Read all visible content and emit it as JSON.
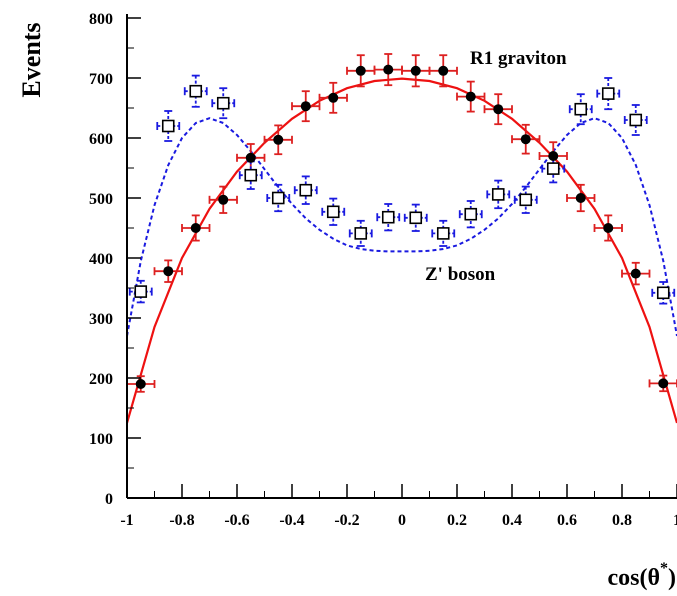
{
  "chart_data": {
    "type": "scatter",
    "title": "",
    "xlabel": "cos(θ*)",
    "ylabel": "Events",
    "xlim": [
      -1,
      1
    ],
    "ylim": [
      0,
      800
    ],
    "x_ticks": [
      -1,
      -0.8,
      -0.6,
      -0.4,
      -0.2,
      0,
      0.2,
      0.4,
      0.6,
      0.8,
      1
    ],
    "x_tick_labels": [
      "-1",
      "-0.8",
      "-0.6",
      "-0.4",
      "-0.2",
      "0",
      "0.2",
      "0.4",
      "0.6",
      "0.8",
      "1"
    ],
    "y_ticks": [
      0,
      100,
      200,
      300,
      400,
      500,
      600,
      700,
      800
    ],
    "y_tick_labels": [
      "0",
      "100",
      "200",
      "300",
      "400",
      "500",
      "600",
      "700",
      "800"
    ],
    "grid": false,
    "annotations": [
      {
        "text": "R1 graviton",
        "x": 0.45,
        "y": 730
      },
      {
        "text": "Z' boson",
        "x": 0.36,
        "y": 400
      }
    ],
    "series": [
      {
        "name": "R1 graviton",
        "color": "#dd2020",
        "marker": "filled-circle",
        "x_error": 0.05,
        "x": [
          -0.95,
          -0.85,
          -0.75,
          -0.65,
          -0.55,
          -0.45,
          -0.35,
          -0.25,
          -0.15,
          -0.05,
          0.05,
          0.15,
          0.25,
          0.35,
          0.45,
          0.55,
          0.65,
          0.75,
          0.85,
          0.95
        ],
        "y": [
          190,
          378,
          450,
          497,
          567,
          597,
          653,
          667,
          712,
          714,
          712,
          712,
          669,
          648,
          598,
          570,
          500,
          450,
          374,
          191
        ],
        "y_error": [
          13,
          18,
          21,
          22,
          23,
          24,
          25,
          25,
          26,
          26,
          26,
          26,
          25,
          25,
          24,
          23,
          22,
          21,
          18,
          13
        ]
      },
      {
        "name": "Z' boson",
        "color": "#1a1ae0",
        "marker": "open-square",
        "x_error": 0.04,
        "x": [
          -0.95,
          -0.85,
          -0.75,
          -0.65,
          -0.55,
          -0.45,
          -0.35,
          -0.25,
          -0.15,
          -0.05,
          0.05,
          0.15,
          0.25,
          0.35,
          0.45,
          0.55,
          0.65,
          0.75,
          0.85,
          0.95
        ],
        "y": [
          344,
          620,
          678,
          658,
          538,
          500,
          513,
          477,
          441,
          468,
          467,
          441,
          473,
          506,
          497,
          549,
          648,
          674,
          630,
          342
        ],
        "y_error": [
          18,
          25,
          26,
          25,
          23,
          22,
          23,
          22,
          21,
          22,
          22,
          21,
          22,
          23,
          22,
          23,
          25,
          26,
          25,
          18
        ]
      }
    ],
    "curves": [
      {
        "name": "R1 graviton fit",
        "color": "#ee1111",
        "style": "solid",
        "x": [
          -1,
          -0.9,
          -0.8,
          -0.7,
          -0.6,
          -0.5,
          -0.4,
          -0.3,
          -0.2,
          -0.1,
          0,
          0.1,
          0.2,
          0.3,
          0.4,
          0.5,
          0.6,
          0.7,
          0.8,
          0.9,
          1
        ],
        "y": [
          125,
          285,
          400,
          482,
          544,
          592,
          632,
          662,
          683,
          695,
          699,
          695,
          683,
          662,
          632,
          592,
          544,
          482,
          400,
          285,
          125
        ]
      },
      {
        "name": "Z' boson fit",
        "color": "#1a1ae0",
        "style": "dashed",
        "x": [
          -1,
          -0.95,
          -0.9,
          -0.85,
          -0.8,
          -0.75,
          -0.7,
          -0.65,
          -0.6,
          -0.55,
          -0.5,
          -0.45,
          -0.4,
          -0.35,
          -0.3,
          -0.25,
          -0.2,
          -0.15,
          -0.1,
          -0.05,
          0,
          0.05,
          0.1,
          0.15,
          0.2,
          0.25,
          0.3,
          0.35,
          0.4,
          0.45,
          0.5,
          0.55,
          0.6,
          0.65,
          0.7,
          0.75,
          0.8,
          0.85,
          0.9,
          0.95,
          1
        ],
        "y": [
          270,
          395,
          488,
          555,
          600,
          625,
          633,
          625,
          605,
          578,
          548,
          518,
          490,
          466,
          447,
          432,
          421,
          415,
          412,
          411,
          411,
          411,
          412,
          415,
          421,
          432,
          447,
          466,
          490,
          518,
          548,
          578,
          605,
          625,
          633,
          625,
          600,
          555,
          488,
          395,
          270
        ]
      }
    ]
  }
}
